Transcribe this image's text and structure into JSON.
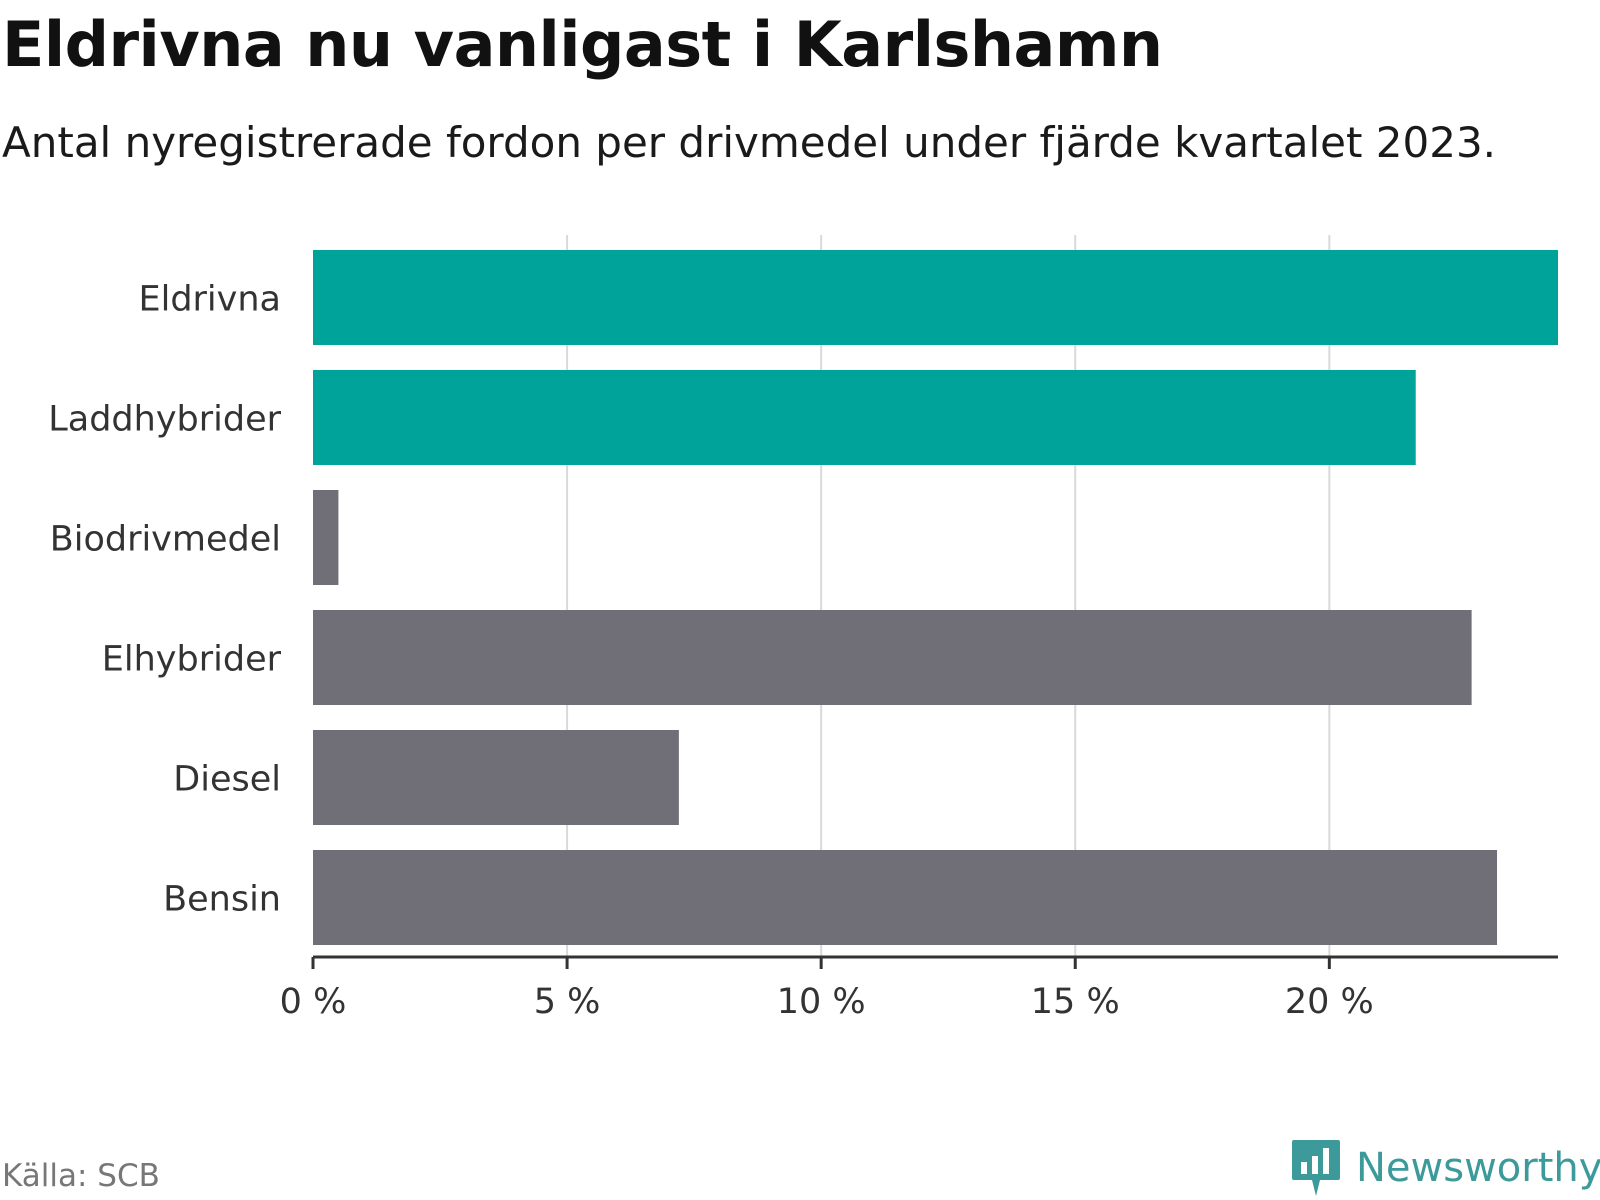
{
  "header": {
    "title": "Eldrivna nu vanligast i Karlshamn",
    "subtitle": "Antal nyregistrerade fordon per drivmedel under fjärde kvartalet 2023."
  },
  "footer": {
    "source": "Källa: SCB",
    "brand": "Newsworthy"
  },
  "colors": {
    "highlight": "#00a39a",
    "default": "#706e76",
    "grid": "#d9d9d9",
    "axis": "#333333",
    "brand": "#3c9a9a"
  },
  "chart_data": {
    "type": "bar",
    "orientation": "horizontal",
    "categories": [
      "Eldrivna",
      "Laddhybrider",
      "Biodrivmedel",
      "Elhybrider",
      "Diesel",
      "Bensin"
    ],
    "values": [
      24.5,
      21.7,
      0.5,
      22.8,
      7.2,
      23.3
    ],
    "highlighted": [
      true,
      true,
      false,
      false,
      false,
      false
    ],
    "xlim": [
      0,
      24.5
    ],
    "xticks": [
      0,
      5,
      10,
      15,
      20
    ],
    "tick_labels": [
      "0 %",
      "5 %",
      "10 %",
      "15 %",
      "20 %"
    ],
    "grid": true
  }
}
